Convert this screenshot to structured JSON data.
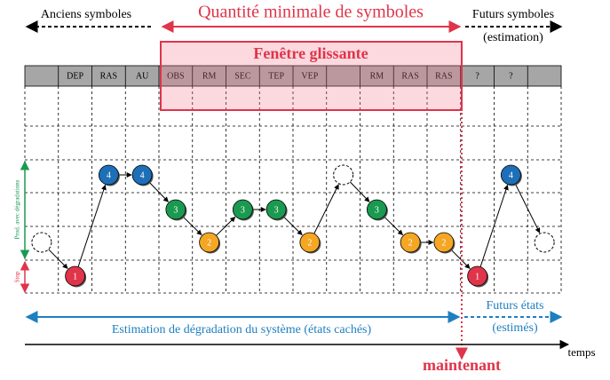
{
  "top": {
    "past": "Anciens symboles",
    "min_window": "Quantité minimale de symboles",
    "future": "Futurs symboles",
    "future_note": "(estimation)"
  },
  "window_title": "Fenêtre glissante",
  "symbols": [
    null,
    "DEP",
    "RAS",
    "AU",
    "OBS",
    "RM",
    "SEC",
    "TEP",
    "VEP",
    null,
    "RM",
    "RAS",
    "RAS",
    "?",
    "?",
    null
  ],
  "states": [
    null,
    "1",
    "4",
    "4",
    "3",
    "2",
    "3",
    "3",
    "2",
    null,
    "3",
    "2",
    "2",
    "1",
    "4",
    null
  ],
  "side": {
    "degraded": "Prod. avec dégradations",
    "stop": "Stop"
  },
  "bottom": {
    "estimation": "Estimation de dégradation du système (états cachés)",
    "future": "Futurs états",
    "future_note": "(estimés)",
    "time": "temps",
    "now": "maintenant"
  }
}
